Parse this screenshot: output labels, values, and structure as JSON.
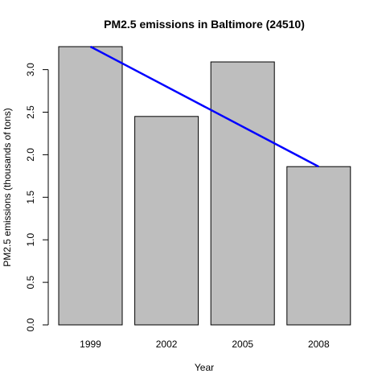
{
  "chart_data": {
    "type": "bar",
    "title": "PM2.5 emissions in Baltimore (24510)",
    "xlabel": "Year",
    "ylabel": "PM2.5 emissions (thousands of tons)",
    "categories": [
      "1999",
      "2002",
      "2005",
      "2008"
    ],
    "values": [
      3.27,
      2.45,
      3.09,
      1.86
    ],
    "ylim": [
      0,
      3.27
    ],
    "yticks": [
      0.0,
      0.5,
      1.0,
      1.5,
      2.0,
      2.5,
      3.0
    ],
    "ytick_labels": [
      "0.0",
      "0.5",
      "1.0",
      "1.5",
      "2.0",
      "2.5",
      "3.0"
    ],
    "grid": false,
    "bar_color": "#bebebe",
    "bar_border_color": "#000000",
    "trend_line": {
      "color": "#0000ff",
      "from_category": "1999",
      "to_category": "2008",
      "y_start": 3.27,
      "y_end": 1.86
    }
  }
}
